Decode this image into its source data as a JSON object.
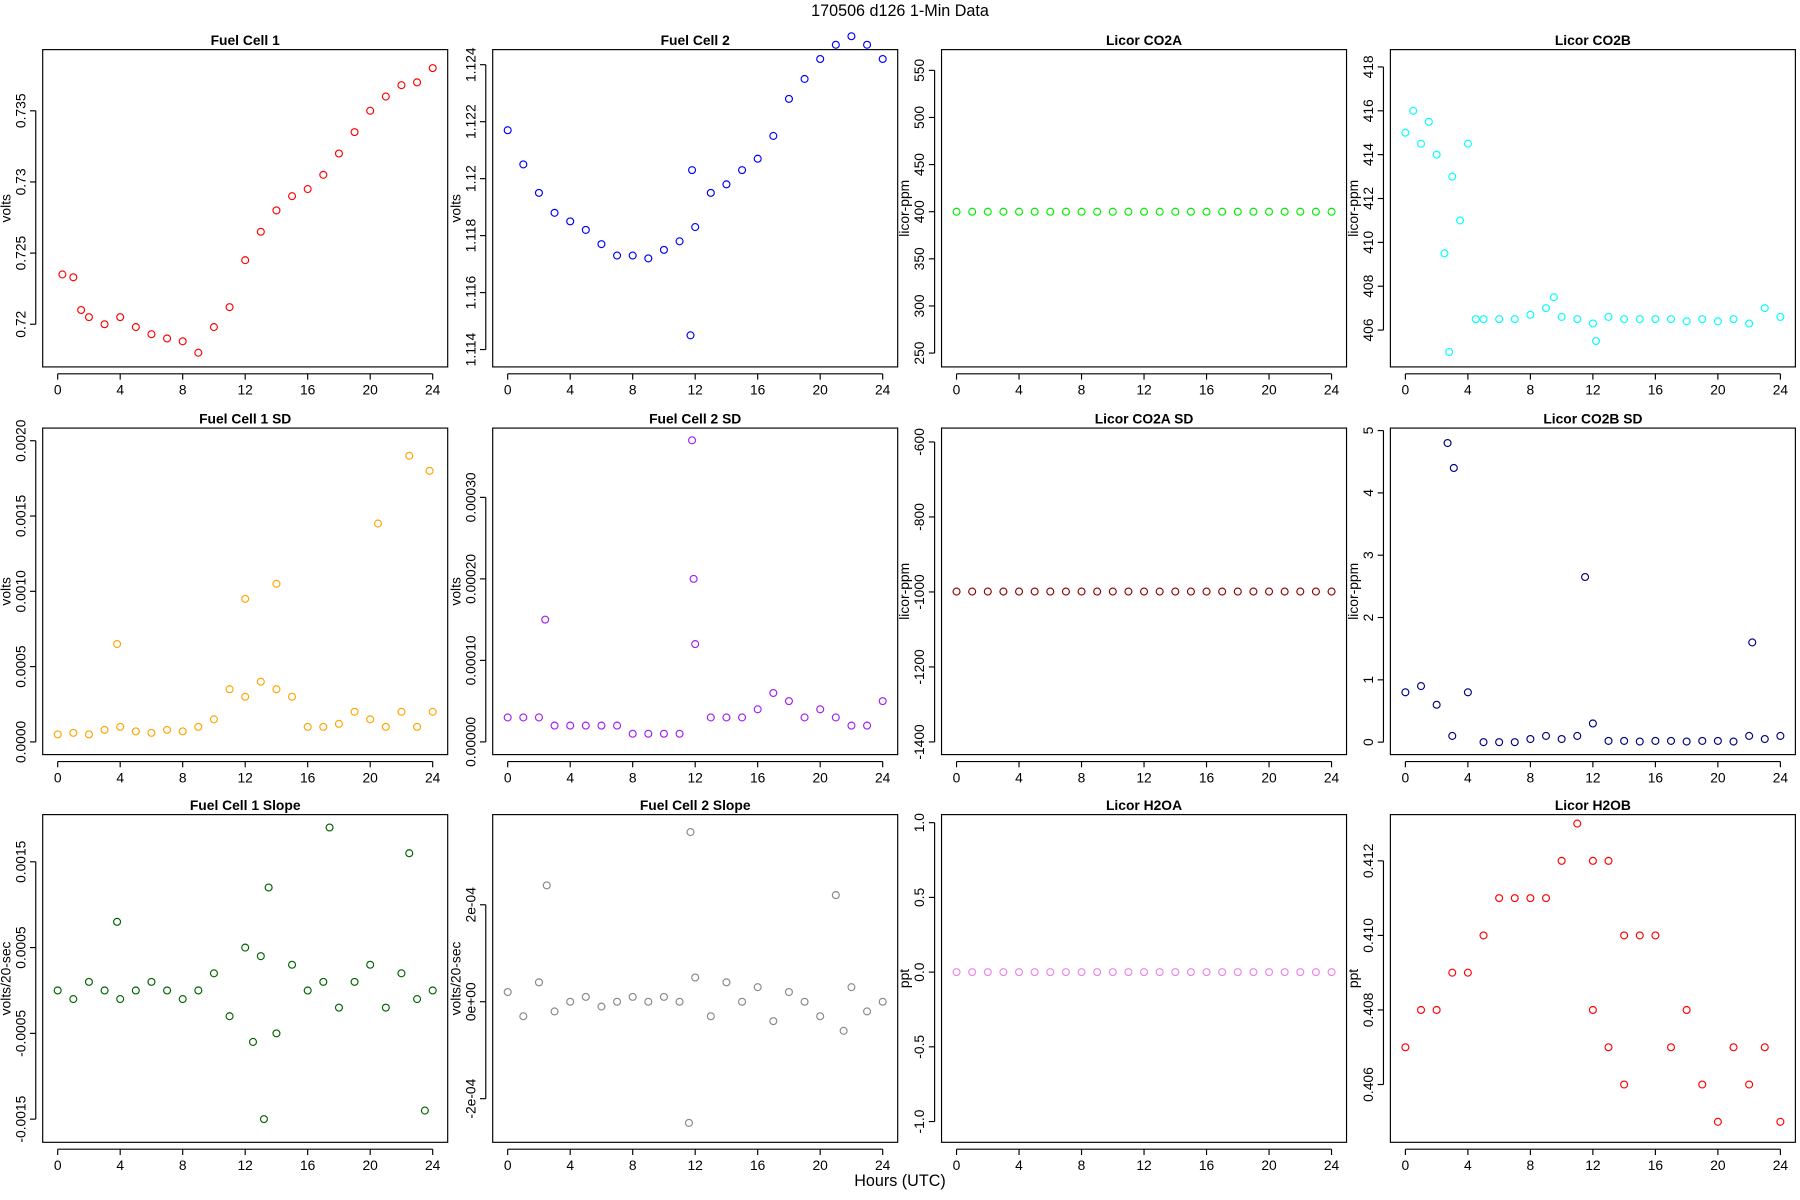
{
  "title": "170506   d126   1-Min Data",
  "xlabel": "Hours (UTC)",
  "chart_data": [
    {
      "type": "scatter",
      "title": "Fuel Cell 1",
      "ylabel": "volts",
      "color": "#ff0000",
      "x": [
        0.3,
        1,
        1.5,
        2,
        3,
        4,
        5,
        6,
        7,
        8,
        9,
        10,
        11,
        12,
        13,
        14,
        15,
        16,
        17,
        18,
        19,
        20,
        21,
        22,
        23,
        24
      ],
      "values": [
        0.7235,
        0.7233,
        0.721,
        0.7205,
        0.72,
        0.7205,
        0.7198,
        0.7193,
        0.719,
        0.7188,
        0.718,
        0.7198,
        0.7212,
        0.7245,
        0.7265,
        0.728,
        0.729,
        0.7295,
        0.7305,
        0.732,
        0.7335,
        0.735,
        0.736,
        0.7368,
        0.737,
        0.738
      ],
      "xlim": [
        -0.96,
        24.96
      ],
      "ylim": [
        0.717,
        0.7393
      ],
      "xticks": [
        0,
        4,
        8,
        12,
        16,
        20,
        24
      ],
      "yticks": [
        0.72,
        0.725,
        0.73,
        0.735
      ]
    },
    {
      "type": "scatter",
      "title": "Fuel Cell 2",
      "ylabel": "volts",
      "color": "#0000ff",
      "x": [
        0,
        1,
        2,
        3,
        4,
        5,
        6,
        7,
        8,
        9,
        10,
        11,
        11.7,
        11.8,
        12,
        13,
        14,
        15,
        16,
        17,
        18,
        19,
        20,
        21,
        22,
        23,
        24
      ],
      "values": [
        1.1217,
        1.1205,
        1.1195,
        1.1188,
        1.1185,
        1.1182,
        1.1177,
        1.1173,
        1.1173,
        1.1172,
        1.1175,
        1.1178,
        1.1145,
        1.1203,
        1.1183,
        1.1195,
        1.1198,
        1.1203,
        1.1207,
        1.1215,
        1.1228,
        1.1235,
        1.1242,
        1.1247,
        1.125,
        1.1247,
        1.1242
      ],
      "xlim": [
        -0.96,
        24.96
      ],
      "ylim": [
        1.11339,
        1.12453
      ],
      "xticks": [
        0,
        4,
        8,
        12,
        16,
        20,
        24
      ],
      "yticks": [
        1.114,
        1.116,
        1.118,
        1.12,
        1.122,
        1.124
      ]
    },
    {
      "type": "scatter",
      "title": "Licor CO2A",
      "ylabel": "licor-ppm",
      "color": "#00ee00",
      "x": [
        0,
        1,
        2,
        3,
        4,
        5,
        6,
        7,
        8,
        9,
        10,
        11,
        12,
        13,
        14,
        15,
        16,
        17,
        18,
        19,
        20,
        21,
        22,
        23,
        24
      ],
      "values": [
        400,
        400,
        400,
        400,
        400,
        400,
        400,
        400,
        400,
        400,
        400,
        400,
        400,
        400,
        400,
        400,
        400,
        400,
        400,
        400,
        400,
        400,
        400,
        400,
        400
      ],
      "xlim": [
        -0.96,
        24.96
      ],
      "ylim": [
        235.3,
        572
      ],
      "xticks": [
        0,
        4,
        8,
        12,
        16,
        20,
        24
      ],
      "yticks": [
        250,
        300,
        350,
        400,
        450,
        500,
        550
      ]
    },
    {
      "type": "scatter",
      "title": "Licor CO2B",
      "ylabel": "licor-ppm",
      "color": "#00ffff",
      "x": [
        0,
        0.5,
        1,
        1.5,
        2,
        2.5,
        2.8,
        3,
        3.5,
        4,
        4.5,
        5,
        6,
        7,
        8,
        9,
        9.5,
        10,
        11,
        12,
        12.2,
        13,
        14,
        15,
        16,
        17,
        18,
        19,
        20,
        21,
        22,
        23,
        24
      ],
      "values": [
        415,
        416,
        414.5,
        415.5,
        414,
        409.5,
        405,
        413,
        411,
        414.5,
        406.5,
        406.5,
        406.5,
        406.5,
        406.7,
        407,
        407.5,
        406.6,
        406.5,
        406.3,
        405.5,
        406.6,
        406.5,
        406.5,
        406.5,
        406.5,
        406.4,
        406.5,
        406.4,
        406.5,
        406.3,
        407,
        406.6
      ],
      "xlim": [
        -0.96,
        24.96
      ],
      "ylim": [
        404.32,
        418.79
      ],
      "xticks": [
        0,
        4,
        8,
        12,
        16,
        20,
        24
      ],
      "yticks": [
        406,
        408,
        410,
        412,
        414,
        416,
        418
      ]
    },
    {
      "type": "scatter",
      "title": "Fuel Cell 1 SD",
      "ylabel": "volts",
      "color": "#ffa500",
      "x": [
        0,
        1,
        2,
        3,
        3.8,
        4,
        5,
        6,
        7,
        8,
        9,
        10,
        11,
        12,
        12,
        13,
        14,
        14,
        15,
        16,
        17,
        18,
        19,
        20,
        20.5,
        21,
        22,
        22.5,
        23,
        23.8,
        24
      ],
      "values": [
        5e-05,
        6e-05,
        5e-05,
        8e-05,
        0.00065,
        0.0001,
        7e-05,
        6e-05,
        8e-05,
        7e-05,
        0.0001,
        0.00015,
        0.00035,
        0.0003,
        0.00095,
        0.0004,
        0.00035,
        0.00105,
        0.0003,
        0.0001,
        0.0001,
        0.00012,
        0.0002,
        0.00015,
        0.00145,
        0.0001,
        0.0002,
        0.0019,
        0.0001,
        0.0018,
        0.0002
      ],
      "xlim": [
        -0.96,
        24.96
      ],
      "ylim": [
        -8.43e-05,
        0.002084
      ],
      "xticks": [
        0,
        4,
        8,
        12,
        16,
        20,
        24
      ],
      "yticks": [
        {
          "value": 0,
          "label": "0.0000"
        },
        0.0005,
        {
          "value": 0.001,
          "label": "0.0010"
        },
        0.0015,
        {
          "value": 0.002,
          "label": "0.0020"
        }
      ]
    },
    {
      "type": "scatter",
      "title": "Fuel Cell 2 SD",
      "ylabel": "volts",
      "color": "#a020f0",
      "x": [
        0,
        1,
        2,
        2.4,
        3,
        4,
        5,
        6,
        7,
        8,
        9,
        10,
        11,
        11.8,
        11.9,
        12,
        13,
        14,
        15,
        16,
        17,
        18,
        19,
        20,
        21,
        22,
        23,
        24
      ],
      "values": [
        3e-05,
        3e-05,
        3e-05,
        0.00015,
        2e-05,
        2e-05,
        2e-05,
        2e-05,
        2e-05,
        1e-05,
        1e-05,
        1e-05,
        1e-05,
        0.00037,
        0.0002,
        0.00012,
        3e-05,
        3e-05,
        3e-05,
        4e-05,
        6e-05,
        5e-05,
        3e-05,
        4e-05,
        3e-05,
        2e-05,
        2e-05,
        5e-05
      ],
      "xlim": [
        -0.96,
        24.96
      ],
      "ylim": [
        -1.56e-05,
        0.000385
      ],
      "xticks": [
        0,
        4,
        8,
        12,
        16,
        20,
        24
      ],
      "yticks": [
        {
          "value": 0,
          "label": "0.00000"
        },
        {
          "value": 0.0001,
          "label": "0.00010"
        },
        {
          "value": 0.0002,
          "label": "0.00020"
        },
        {
          "value": 0.0003,
          "label": "0.00030"
        }
      ]
    },
    {
      "type": "scatter",
      "title": "Licor CO2A SD",
      "ylabel": "licor-ppm",
      "color": "#8b0000",
      "x": [
        0,
        1,
        2,
        3,
        4,
        5,
        6,
        7,
        8,
        9,
        10,
        11,
        12,
        13,
        14,
        15,
        16,
        17,
        18,
        19,
        20,
        21,
        22,
        23,
        24
      ],
      "values": [
        -999,
        -999,
        -999,
        -999,
        -999,
        -999,
        -999,
        -999,
        -999,
        -999,
        -999,
        -999,
        -999,
        -999,
        -999,
        -999,
        -999,
        -999,
        -999,
        -999,
        -999,
        -999,
        -999,
        -999,
        -999
      ],
      "xlim": [
        -0.96,
        24.96
      ],
      "ylim": [
        -1433.8,
        -563
      ],
      "xticks": [
        0,
        4,
        8,
        12,
        16,
        20,
        24
      ],
      "yticks": [
        -1400,
        -1200,
        -1000,
        -800,
        -600
      ]
    },
    {
      "type": "scatter",
      "title": "Licor CO2B SD",
      "ylabel": "licor-ppm",
      "color": "#000080",
      "x": [
        0,
        1,
        2,
        2.7,
        3,
        3.1,
        4,
        5,
        6,
        7,
        8,
        9,
        10,
        11,
        11.5,
        12,
        13,
        14,
        15,
        16,
        17,
        18,
        19,
        20,
        21,
        22,
        22.2,
        23,
        24
      ],
      "values": [
        0.8,
        0.9,
        0.6,
        4.8,
        0.1,
        4.4,
        0.8,
        0,
        0,
        0,
        0.05,
        0.1,
        0.05,
        0.1,
        2.65,
        0.3,
        0.02,
        0.02,
        0.01,
        0.02,
        0.02,
        0.01,
        0.02,
        0.02,
        0.01,
        0.1,
        1.6,
        0.05,
        0.1
      ],
      "xlim": [
        -0.96,
        24.96
      ],
      "ylim": [
        -0.2,
        5.04
      ],
      "xticks": [
        0,
        4,
        8,
        12,
        16,
        20,
        24
      ],
      "yticks": [
        0,
        1,
        2,
        3,
        4,
        5
      ]
    },
    {
      "type": "scatter",
      "title": "Fuel Cell 1 Slope",
      "ylabel": "volts/20-sec",
      "color": "#006400",
      "x": [
        0,
        1,
        2,
        3,
        3.8,
        4,
        5,
        6,
        7,
        8,
        9,
        10,
        11,
        12,
        12.5,
        13,
        13.2,
        13.5,
        14,
        15,
        16,
        17,
        17.4,
        18,
        19,
        20,
        21,
        22,
        22.5,
        23,
        23.5,
        24
      ],
      "values": [
        0,
        -0.0001,
        0.0001,
        0,
        0.0008,
        -0.0001,
        0,
        0.0001,
        0,
        -0.0001,
        0,
        0.0002,
        -0.0003,
        0.0005,
        -0.0006,
        0.0004,
        -0.0015,
        0.0012,
        -0.0005,
        0.0003,
        0,
        0.0001,
        0.0019,
        -0.0002,
        0.0001,
        0.0003,
        -0.0002,
        0.0002,
        0.0016,
        -0.0001,
        -0.0014,
        0
      ],
      "xlim": [
        -0.96,
        24.96
      ],
      "ylim": [
        -0.00177,
        0.00205
      ],
      "xticks": [
        0,
        4,
        8,
        12,
        16,
        20,
        24
      ],
      "yticks": [
        -0.0015,
        -0.0005,
        0.0005,
        0.0015
      ]
    },
    {
      "type": "scatter",
      "title": "Fuel Cell 2 Slope",
      "ylabel": "volts/20-sec",
      "color": "#888888",
      "x": [
        0,
        1,
        2,
        2.5,
        3,
        4,
        5,
        6,
        7,
        8,
        9,
        10,
        11,
        11.6,
        11.7,
        12,
        13,
        14,
        15,
        16,
        17,
        18,
        19,
        20,
        21,
        21.5,
        22,
        23,
        24
      ],
      "values": [
        2e-05,
        -3e-05,
        4e-05,
        0.00024,
        -2e-05,
        0,
        1e-05,
        -1e-05,
        0,
        1e-05,
        0,
        1e-05,
        0,
        -0.00025,
        0.00035,
        5e-05,
        -3e-05,
        4e-05,
        0,
        3e-05,
        -4e-05,
        2e-05,
        0,
        -3e-05,
        0.00022,
        -6e-05,
        3e-05,
        -2e-05,
        0
      ],
      "xlim": [
        -0.96,
        24.96
      ],
      "ylim": [
        -0.00029,
        0.000386
      ],
      "xticks": [
        0,
        4,
        8,
        12,
        16,
        20,
        24
      ],
      "yticks": [
        {
          "value": -0.0002,
          "label": "-2e-04"
        },
        {
          "value": 0,
          "label": "0e+00"
        },
        {
          "value": 0.0002,
          "label": "2e-04"
        }
      ]
    },
    {
      "type": "scatter",
      "title": "Licor H2OA",
      "ylabel": "ppt",
      "color": "#ee82ee",
      "x": [
        0,
        1,
        2,
        3,
        4,
        5,
        6,
        7,
        8,
        9,
        10,
        11,
        12,
        13,
        14,
        15,
        16,
        17,
        18,
        19,
        20,
        21,
        22,
        23,
        24
      ],
      "values": [
        0,
        0,
        0,
        0,
        0,
        0,
        0,
        0,
        0,
        0,
        0,
        0,
        0,
        0,
        0,
        0,
        0,
        0,
        0,
        0,
        0,
        0,
        0,
        0,
        0
      ],
      "xlim": [
        -0.96,
        24.96
      ],
      "ylim": [
        -1.139,
        1.054
      ],
      "xticks": [
        0,
        4,
        8,
        12,
        16,
        20,
        24
      ],
      "yticks": [
        {
          "value": -1,
          "label": "-1.0"
        },
        -0.5,
        {
          "value": 0,
          "label": "0.0"
        },
        0.5,
        {
          "value": 1,
          "label": "1.0"
        }
      ]
    },
    {
      "type": "scatter",
      "title": "Licor H2OB",
      "ylabel": "ppt",
      "color": "#ff0000",
      "x": [
        0,
        1,
        2,
        3,
        4,
        5,
        6,
        7,
        8,
        9,
        10,
        11,
        12,
        12,
        13,
        13,
        14,
        14,
        15,
        16,
        17,
        18,
        19,
        20,
        21,
        22,
        23,
        24
      ],
      "values": [
        0.407,
        0.408,
        0.408,
        0.409,
        0.409,
        0.41,
        0.411,
        0.411,
        0.411,
        0.411,
        0.412,
        0.413,
        0.412,
        0.408,
        0.412,
        0.407,
        0.41,
        0.406,
        0.41,
        0.41,
        0.407,
        0.408,
        0.406,
        0.405,
        0.407,
        0.406,
        0.407,
        0.405
      ],
      "xlim": [
        -0.96,
        24.96
      ],
      "ylim": [
        0.40445,
        0.41324
      ],
      "xticks": [
        0,
        4,
        8,
        12,
        16,
        20,
        24
      ],
      "yticks": [
        0.406,
        0.408,
        {
          "value": 0.41,
          "label": "0.410"
        },
        0.412
      ]
    }
  ]
}
